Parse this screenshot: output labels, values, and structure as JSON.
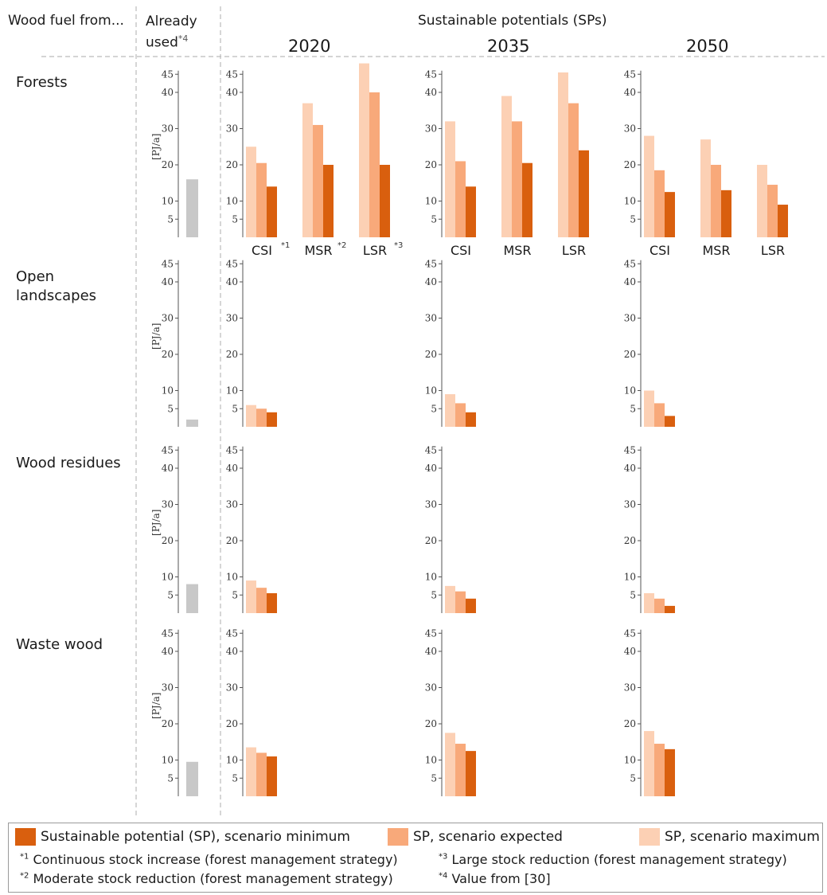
{
  "header": {
    "wood_fuel_from": "Wood fuel from...",
    "already_used": "Already used",
    "already_used_note": "*4",
    "sustainable_potentials": "Sustainable potentials (SPs)"
  },
  "years": [
    "2020",
    "2035",
    "2050"
  ],
  "scenarios": [
    "CSI",
    "MSR",
    "LSR"
  ],
  "scenario_notes_2020": [
    "*1",
    "*2",
    "*3"
  ],
  "rows": [
    "Forests",
    "Open landscapes",
    "Wood residues",
    "Waste wood"
  ],
  "colors": {
    "min": "#d95f0e",
    "expected": "#f8a97a",
    "maximum": "#fcd0b4",
    "already_used": "#c8c8c8",
    "axis": "#555555",
    "divider": "#bbbbbb"
  },
  "chart_data": {
    "type": "bar",
    "ylabel": "[PJ/a]",
    "ylim": [
      0,
      46
    ],
    "yticks": [
      5,
      10,
      20,
      30,
      40,
      45
    ],
    "series_names": [
      "Sustainable potential (SP), scenario minimum",
      "SP, scenario expected",
      "SP, scenario maximum"
    ],
    "already_used": {
      "Forests": 16,
      "Open landscapes": 2,
      "Wood residues": 8,
      "Waste wood": 9.5
    },
    "potentials": {
      "Forests": {
        "2020": {
          "CSI": [
            25,
            20.5,
            14
          ],
          "MSR": [
            37,
            31,
            20
          ],
          "LSR": [
            48,
            40,
            20
          ]
        },
        "2035": {
          "CSI": [
            32,
            21,
            14
          ],
          "MSR": [
            39,
            32,
            20.5
          ],
          "LSR": [
            45.5,
            37,
            24
          ]
        },
        "2050": {
          "CSI": [
            28,
            18.5,
            12.5
          ],
          "MSR": [
            27,
            20,
            13
          ],
          "LSR": [
            20,
            14.5,
            9
          ]
        }
      },
      "Open landscapes": {
        "2020": {
          "CSI": [
            6,
            5,
            4
          ]
        },
        "2035": {
          "CSI": [
            9,
            6.5,
            4
          ]
        },
        "2050": {
          "CSI": [
            10,
            6.5,
            3
          ]
        }
      },
      "Wood residues": {
        "2020": {
          "CSI": [
            9,
            7,
            5.5
          ]
        },
        "2035": {
          "CSI": [
            7.5,
            6,
            4
          ]
        },
        "2050": {
          "CSI": [
            5.5,
            4,
            2
          ]
        }
      },
      "Waste wood": {
        "2020": {
          "CSI": [
            13.5,
            12,
            11
          ]
        },
        "2035": {
          "CSI": [
            17.5,
            14.5,
            12.5
          ]
        },
        "2050": {
          "CSI": [
            18,
            14.5,
            13
          ]
        }
      }
    }
  },
  "legend": {
    "min_label": "Sustainable potential (SP), scenario minimum",
    "expected_label": "SP, scenario expected",
    "maximum_label": "SP, scenario maximum"
  },
  "notes": [
    {
      "mark": "*1",
      "text": "Continuous stock increase (forest management strategy)"
    },
    {
      "mark": "*2",
      "text": "Moderate stock reduction (forest management strategy)"
    },
    {
      "mark": "*3",
      "text": "Large stock reduction (forest management strategy)"
    },
    {
      "mark": "*4",
      "text": "Value from [30]"
    }
  ]
}
